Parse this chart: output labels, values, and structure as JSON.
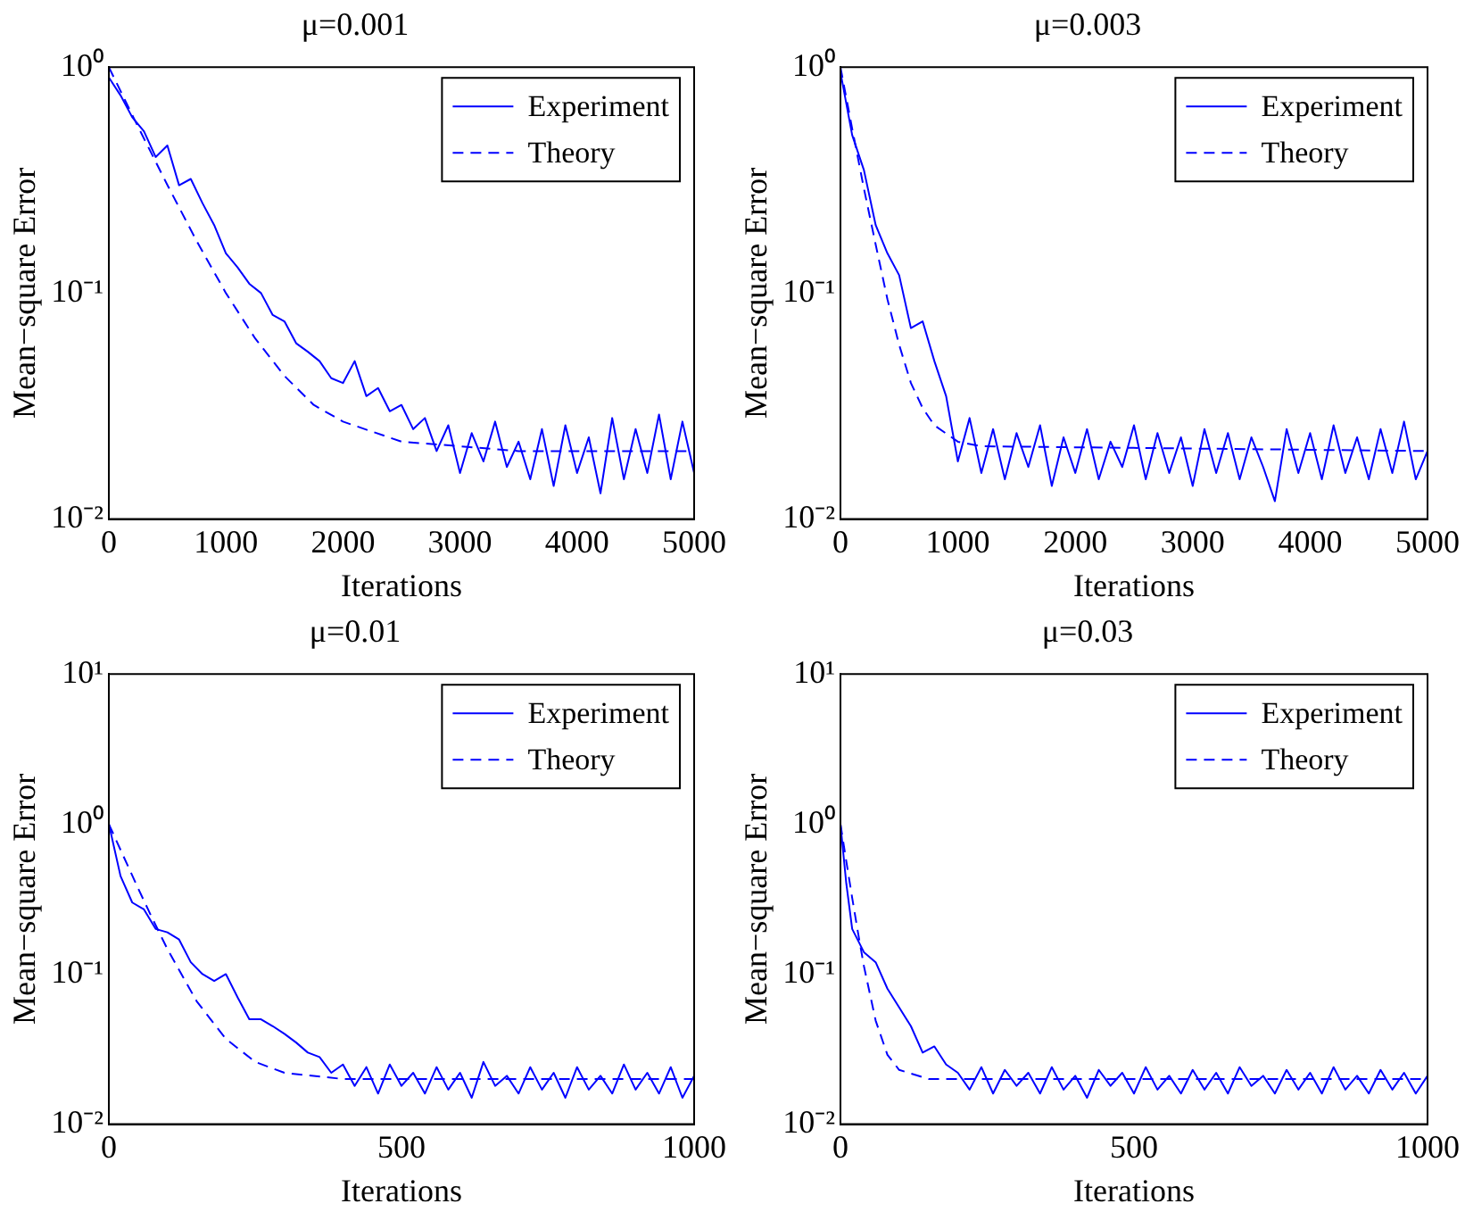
{
  "chart_data": [
    {
      "type": "line",
      "title": "μ=0.001",
      "xlabel": "Iterations",
      "ylabel": "Mean−square Error",
      "log": "y",
      "xlim": [
        0,
        5000
      ],
      "xticks": [
        0,
        1000,
        2000,
        3000,
        4000,
        5000
      ],
      "ylim": [
        0.01,
        1
      ],
      "yticks": [
        {
          "value": 0.01,
          "label": "10⁻²"
        },
        {
          "value": 0.1,
          "label": "10⁻¹"
        },
        {
          "value": 1,
          "label": "10⁰"
        }
      ],
      "legend": "top right",
      "series": [
        {
          "name": "Experiment",
          "color": "#0000ff",
          "line_style": "solid",
          "x": [
            0,
            100,
            200,
            300,
            400,
            500,
            600,
            700,
            800,
            900,
            1000,
            1100,
            1200,
            1300,
            1400,
            1500,
            1600,
            1700,
            1800,
            1900,
            2000,
            2100,
            2200,
            2300,
            2400,
            2500,
            2600,
            2700,
            2800,
            2900,
            3000,
            3100,
            3200,
            3300,
            3400,
            3500,
            3600,
            3700,
            3800,
            3900,
            4000,
            4100,
            4200,
            4300,
            4400,
            4500,
            4600,
            4700,
            4800,
            4900,
            5000
          ],
          "values": [
            0.9,
            0.75,
            0.6,
            0.52,
            0.4,
            0.45,
            0.3,
            0.32,
            0.25,
            0.2,
            0.15,
            0.13,
            0.11,
            0.1,
            0.08,
            0.075,
            0.06,
            0.055,
            0.05,
            0.042,
            0.04,
            0.05,
            0.035,
            0.038,
            0.03,
            0.032,
            0.025,
            0.028,
            0.02,
            0.026,
            0.016,
            0.024,
            0.018,
            0.027,
            0.017,
            0.022,
            0.015,
            0.025,
            0.014,
            0.026,
            0.016,
            0.023,
            0.013,
            0.028,
            0.015,
            0.025,
            0.016,
            0.029,
            0.015,
            0.027,
            0.016
          ]
        },
        {
          "name": "Theory",
          "color": "#0000ff",
          "line_style": "dashed",
          "x": [
            0,
            250,
            500,
            750,
            1000,
            1250,
            1500,
            1750,
            2000,
            2500,
            3000,
            3500,
            4000,
            5000
          ],
          "values": [
            1,
            0.544,
            0.301,
            0.17,
            0.1,
            0.063,
            0.043,
            0.032,
            0.027,
            0.022,
            0.021,
            0.02,
            0.02,
            0.02
          ]
        }
      ]
    },
    {
      "type": "line",
      "title": "μ=0.003",
      "xlabel": "Iterations",
      "ylabel": "Mean−square Error",
      "log": "y",
      "xlim": [
        0,
        5000
      ],
      "xticks": [
        0,
        1000,
        2000,
        3000,
        4000,
        5000
      ],
      "ylim": [
        0.01,
        1
      ],
      "yticks": [
        {
          "value": 0.01,
          "label": "10⁻²"
        },
        {
          "value": 0.1,
          "label": "10⁻¹"
        },
        {
          "value": 1,
          "label": "10⁰"
        }
      ],
      "legend": "top right",
      "series": [
        {
          "name": "Experiment",
          "color": "#0000ff",
          "line_style": "solid",
          "x": [
            0,
            100,
            200,
            300,
            400,
            500,
            600,
            700,
            800,
            900,
            1000,
            1100,
            1200,
            1300,
            1400,
            1500,
            1600,
            1700,
            1800,
            1900,
            2000,
            2100,
            2200,
            2300,
            2400,
            2500,
            2600,
            2700,
            2800,
            2900,
            3000,
            3100,
            3200,
            3300,
            3400,
            3500,
            3600,
            3700,
            3800,
            3900,
            4000,
            4100,
            4200,
            4300,
            4400,
            4500,
            4600,
            4700,
            4800,
            4900,
            5000
          ],
          "values": [
            0.95,
            0.5,
            0.35,
            0.2,
            0.15,
            0.12,
            0.07,
            0.075,
            0.05,
            0.035,
            0.018,
            0.028,
            0.016,
            0.025,
            0.015,
            0.024,
            0.017,
            0.026,
            0.014,
            0.023,
            0.016,
            0.025,
            0.015,
            0.022,
            0.017,
            0.026,
            0.015,
            0.024,
            0.016,
            0.023,
            0.014,
            0.025,
            0.016,
            0.024,
            0.015,
            0.023,
            0.017,
            0.012,
            0.025,
            0.016,
            0.024,
            0.015,
            0.026,
            0.016,
            0.023,
            0.015,
            0.025,
            0.016,
            0.027,
            0.015,
            0.02
          ]
        },
        {
          "name": "Theory",
          "color": "#0000ff",
          "line_style": "dashed",
          "x": [
            0,
            100,
            200,
            300,
            400,
            500,
            600,
            700,
            800,
            1000,
            1200,
            5000
          ],
          "values": [
            1,
            0.534,
            0.29,
            0.164,
            0.094,
            0.059,
            0.04,
            0.031,
            0.026,
            0.022,
            0.021,
            0.02
          ]
        }
      ]
    },
    {
      "type": "line",
      "title": "μ=0.01",
      "xlabel": "Iterations",
      "ylabel": "Mean−square Error",
      "log": "y",
      "xlim": [
        0,
        1000
      ],
      "xticks": [
        0,
        500,
        1000
      ],
      "ylim": [
        0.01,
        10
      ],
      "yticks": [
        {
          "value": 0.01,
          "label": "10⁻²"
        },
        {
          "value": 0.1,
          "label": "10⁻¹"
        },
        {
          "value": 1,
          "label": "10⁰"
        },
        {
          "value": 10,
          "label": "10¹"
        }
      ],
      "legend": "top right",
      "series": [
        {
          "name": "Experiment",
          "color": "#0000ff",
          "line_style": "solid",
          "x": [
            0,
            20,
            40,
            60,
            80,
            100,
            120,
            140,
            160,
            180,
            200,
            220,
            240,
            260,
            280,
            300,
            320,
            340,
            360,
            380,
            400,
            420,
            440,
            460,
            480,
            500,
            520,
            540,
            560,
            580,
            600,
            620,
            640,
            660,
            680,
            700,
            720,
            740,
            760,
            780,
            800,
            820,
            840,
            860,
            880,
            900,
            920,
            940,
            960,
            980,
            1000
          ],
          "values": [
            1,
            0.45,
            0.3,
            0.27,
            0.2,
            0.19,
            0.17,
            0.12,
            0.1,
            0.09,
            0.1,
            0.07,
            0.05,
            0.05,
            0.045,
            0.04,
            0.035,
            0.03,
            0.028,
            0.022,
            0.025,
            0.018,
            0.024,
            0.016,
            0.025,
            0.018,
            0.022,
            0.016,
            0.024,
            0.017,
            0.022,
            0.015,
            0.026,
            0.018,
            0.021,
            0.016,
            0.024,
            0.017,
            0.022,
            0.015,
            0.024,
            0.017,
            0.021,
            0.016,
            0.025,
            0.017,
            0.022,
            0.016,
            0.024,
            0.015,
            0.021
          ]
        },
        {
          "name": "Theory",
          "color": "#0000ff",
          "line_style": "dashed",
          "x": [
            0,
            25,
            50,
            75,
            100,
            150,
            200,
            250,
            300,
            400,
            1000
          ],
          "values": [
            1,
            0.61,
            0.373,
            0.232,
            0.147,
            0.066,
            0.037,
            0.026,
            0.022,
            0.02,
            0.02
          ]
        }
      ]
    },
    {
      "type": "line",
      "title": "μ=0.03",
      "xlabel": "Iterations",
      "ylabel": "Mean−square Error",
      "log": "y",
      "xlim": [
        0,
        1000
      ],
      "xticks": [
        0,
        500,
        1000
      ],
      "ylim": [
        0.01,
        10
      ],
      "yticks": [
        {
          "value": 0.01,
          "label": "10⁻²"
        },
        {
          "value": 0.1,
          "label": "10⁻¹"
        },
        {
          "value": 1,
          "label": "10⁰"
        },
        {
          "value": 10,
          "label": "10¹"
        }
      ],
      "legend": "top right",
      "series": [
        {
          "name": "Experiment",
          "color": "#0000ff",
          "line_style": "solid",
          "x": [
            0,
            10,
            20,
            40,
            60,
            80,
            100,
            120,
            140,
            160,
            180,
            200,
            220,
            240,
            260,
            280,
            300,
            320,
            340,
            360,
            380,
            400,
            420,
            440,
            460,
            480,
            500,
            520,
            540,
            560,
            580,
            600,
            620,
            640,
            660,
            680,
            700,
            720,
            740,
            760,
            780,
            800,
            820,
            840,
            860,
            880,
            900,
            920,
            940,
            960,
            980,
            1000
          ],
          "values": [
            1,
            0.4,
            0.2,
            0.14,
            0.12,
            0.08,
            0.06,
            0.045,
            0.03,
            0.033,
            0.025,
            0.022,
            0.017,
            0.024,
            0.016,
            0.023,
            0.018,
            0.022,
            0.016,
            0.024,
            0.017,
            0.021,
            0.015,
            0.023,
            0.018,
            0.022,
            0.016,
            0.024,
            0.017,
            0.021,
            0.016,
            0.023,
            0.017,
            0.022,
            0.016,
            0.024,
            0.018,
            0.021,
            0.016,
            0.023,
            0.017,
            0.022,
            0.016,
            0.024,
            0.017,
            0.021,
            0.016,
            0.023,
            0.017,
            0.022,
            0.016,
            0.021
          ]
        },
        {
          "name": "Theory",
          "color": "#0000ff",
          "line_style": "dashed",
          "x": [
            0,
            10,
            20,
            30,
            40,
            60,
            80,
            100,
            150,
            1000
          ],
          "values": [
            1,
            0.564,
            0.322,
            0.188,
            0.113,
            0.049,
            0.029,
            0.023,
            0.02,
            0.02
          ]
        }
      ]
    }
  ]
}
